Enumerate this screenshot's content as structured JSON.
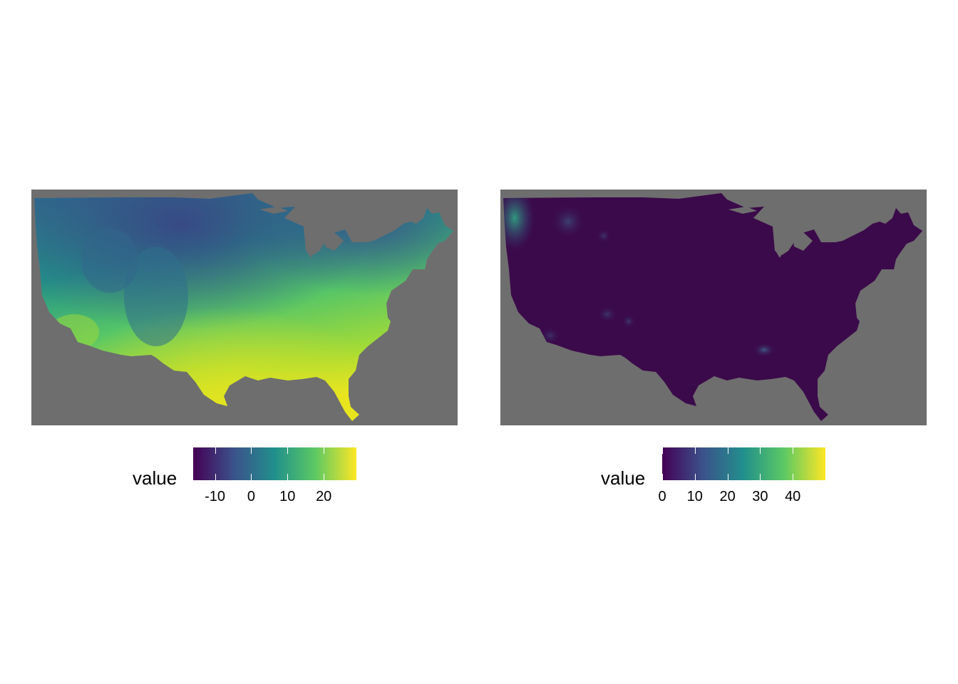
{
  "maps": [
    {
      "id": "temperature",
      "legend": {
        "title": "value",
        "min": -16,
        "max": 29,
        "breaks": [
          -10,
          0,
          10,
          20
        ],
        "break_labels": [
          "-10",
          "0",
          "10",
          "20"
        ],
        "palette": "viridis"
      }
    },
    {
      "id": "precipitation",
      "legend": {
        "title": "value",
        "min": 0,
        "max": 50,
        "breaks": [
          0,
          10,
          20,
          30,
          40
        ],
        "break_labels": [
          "0",
          "10",
          "20",
          "30",
          "40"
        ],
        "palette": "viridis"
      }
    }
  ],
  "colors": {
    "panel_background": "#6e6e6e",
    "viridis": [
      "#440154",
      "#3b528b",
      "#21908c",
      "#5dc963",
      "#fde725"
    ],
    "map2_fill": "#3b0a4a"
  }
}
